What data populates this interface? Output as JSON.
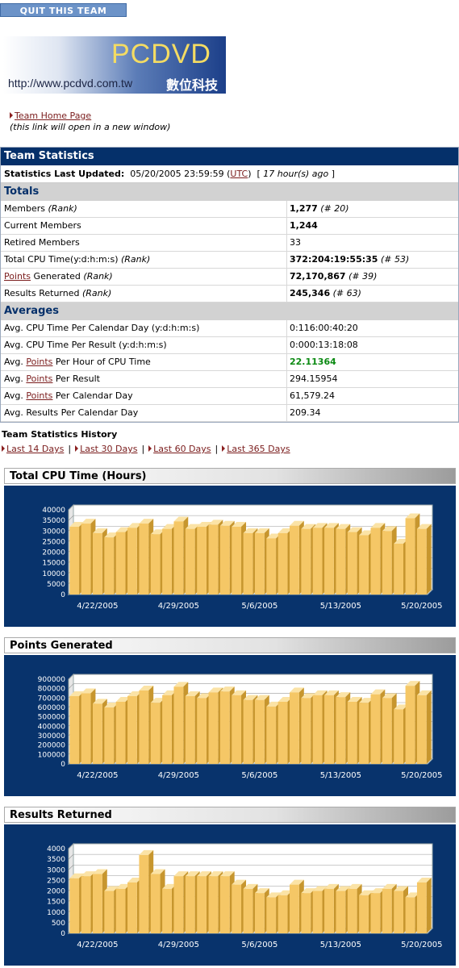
{
  "quit_button": "QUIT THIS TEAM",
  "logo": {
    "name": "PCDVD",
    "url": "http://www.pcdvd.com.tw",
    "chinese": "數位科技"
  },
  "team_home": {
    "label": "Team Home Page",
    "note": "(this link will open in a new window)"
  },
  "team_statistics": {
    "title": "Team Statistics",
    "last_updated_label": "Statistics Last Updated:",
    "last_updated_value": "05/20/2005 23:59:59",
    "timezone": "UTC",
    "ago": "17 hour(s) ago"
  },
  "totals": {
    "title": "Totals",
    "rows": [
      {
        "pre": "Members ",
        "link": "",
        "post": "",
        "rank_note": "(Rank)",
        "value": "1,277",
        "rank": "(# 20)",
        "bold": true
      },
      {
        "pre": "Current Members",
        "link": "",
        "post": "",
        "rank_note": "",
        "value": "1,244",
        "rank": "",
        "bold": true
      },
      {
        "pre": "Retired Members",
        "link": "",
        "post": "",
        "rank_note": "",
        "value": "33",
        "rank": "",
        "bold": false
      },
      {
        "pre": "Total CPU Time(y:d:h:m:s) ",
        "link": "",
        "post": "",
        "rank_note": "(Rank)",
        "value": "372:204:19:55:35",
        "rank": "(# 53)",
        "bold": true
      },
      {
        "pre": "",
        "link": "Points",
        "post": " Generated ",
        "rank_note": "(Rank)",
        "value": "72,170,867",
        "rank": "(# 39)",
        "bold": true
      },
      {
        "pre": "Results Returned ",
        "link": "",
        "post": "",
        "rank_note": "(Rank)",
        "value": "245,346",
        "rank": "(# 63)",
        "bold": true
      }
    ]
  },
  "averages": {
    "title": "Averages",
    "rows": [
      {
        "pre": "Avg. CPU Time Per Calendar Day (y:d:h:m:s)",
        "link": "",
        "post": "",
        "value": "0:116:00:40:20",
        "green": false
      },
      {
        "pre": "Avg. CPU Time Per Result (y:d:h:m:s)",
        "link": "",
        "post": "",
        "value": "0:000:13:18:08",
        "green": false
      },
      {
        "pre": "Avg. ",
        "link": "Points",
        "post": " Per Hour of CPU Time",
        "value": "22.11364",
        "green": true
      },
      {
        "pre": "Avg. ",
        "link": "Points",
        "post": " Per Result",
        "value": "294.15954",
        "green": false
      },
      {
        "pre": "Avg. ",
        "link": "Points",
        "post": " Per Calendar Day",
        "value": "61,579.24",
        "green": false
      },
      {
        "pre": "Avg. Results Per Calendar Day",
        "link": "",
        "post": "",
        "value": "209.34",
        "green": false
      }
    ]
  },
  "history": {
    "title": "Team Statistics History",
    "links": [
      "Last 14 Days",
      "Last 30 Days",
      "Last 60 Days",
      "Last 365 Days"
    ]
  },
  "chart_data": [
    {
      "type": "bar",
      "title": "Total CPU Time (Hours)",
      "x_tick_labels": [
        "4/22/2005",
        "4/29/2005",
        "5/6/2005",
        "5/13/2005",
        "5/20/2005"
      ],
      "ylim": [
        0,
        40000
      ],
      "y_ticks": [
        0,
        5000,
        10000,
        15000,
        20000,
        25000,
        30000,
        35000,
        40000
      ],
      "grid": true,
      "bar_color": "#f5c766",
      "values": [
        32000,
        33500,
        29000,
        27000,
        29500,
        31500,
        33500,
        28500,
        31000,
        34500,
        31000,
        32000,
        33000,
        32500,
        32000,
        29000,
        29000,
        26500,
        29000,
        32500,
        31000,
        31500,
        31500,
        31000,
        29500,
        28000,
        31500,
        30000,
        24000,
        36000,
        31000
      ]
    },
    {
      "type": "bar",
      "title": "Points Generated",
      "x_tick_labels": [
        "4/22/2005",
        "4/29/2005",
        "5/6/2005",
        "5/13/2005",
        "5/20/2005"
      ],
      "ylim": [
        0,
        900000
      ],
      "y_ticks": [
        0,
        100000,
        200000,
        300000,
        400000,
        500000,
        600000,
        700000,
        800000,
        900000
      ],
      "grid": true,
      "bar_color": "#f5c766",
      "values": [
        720000,
        750000,
        640000,
        600000,
        660000,
        720000,
        780000,
        650000,
        730000,
        820000,
        720000,
        700000,
        760000,
        770000,
        730000,
        680000,
        680000,
        610000,
        660000,
        760000,
        700000,
        730000,
        730000,
        710000,
        660000,
        650000,
        740000,
        700000,
        580000,
        830000,
        730000
      ]
    },
    {
      "type": "bar",
      "title": "Results Returned",
      "x_tick_labels": [
        "4/22/2005",
        "4/29/2005",
        "5/6/2005",
        "5/13/2005",
        "5/20/2005"
      ],
      "ylim": [
        0,
        4000
      ],
      "y_ticks": [
        0,
        500,
        1000,
        1500,
        2000,
        2500,
        3000,
        3500,
        4000
      ],
      "grid": true,
      "bar_color": "#f5c766",
      "values": [
        2600,
        2700,
        2800,
        2000,
        2100,
        2400,
        3700,
        2800,
        2100,
        2700,
        2700,
        2700,
        2700,
        2700,
        2300,
        2100,
        1900,
        1700,
        1800,
        2300,
        1900,
        2000,
        2100,
        2000,
        2100,
        1800,
        1900,
        2100,
        2000,
        1700,
        2400
      ]
    }
  ]
}
